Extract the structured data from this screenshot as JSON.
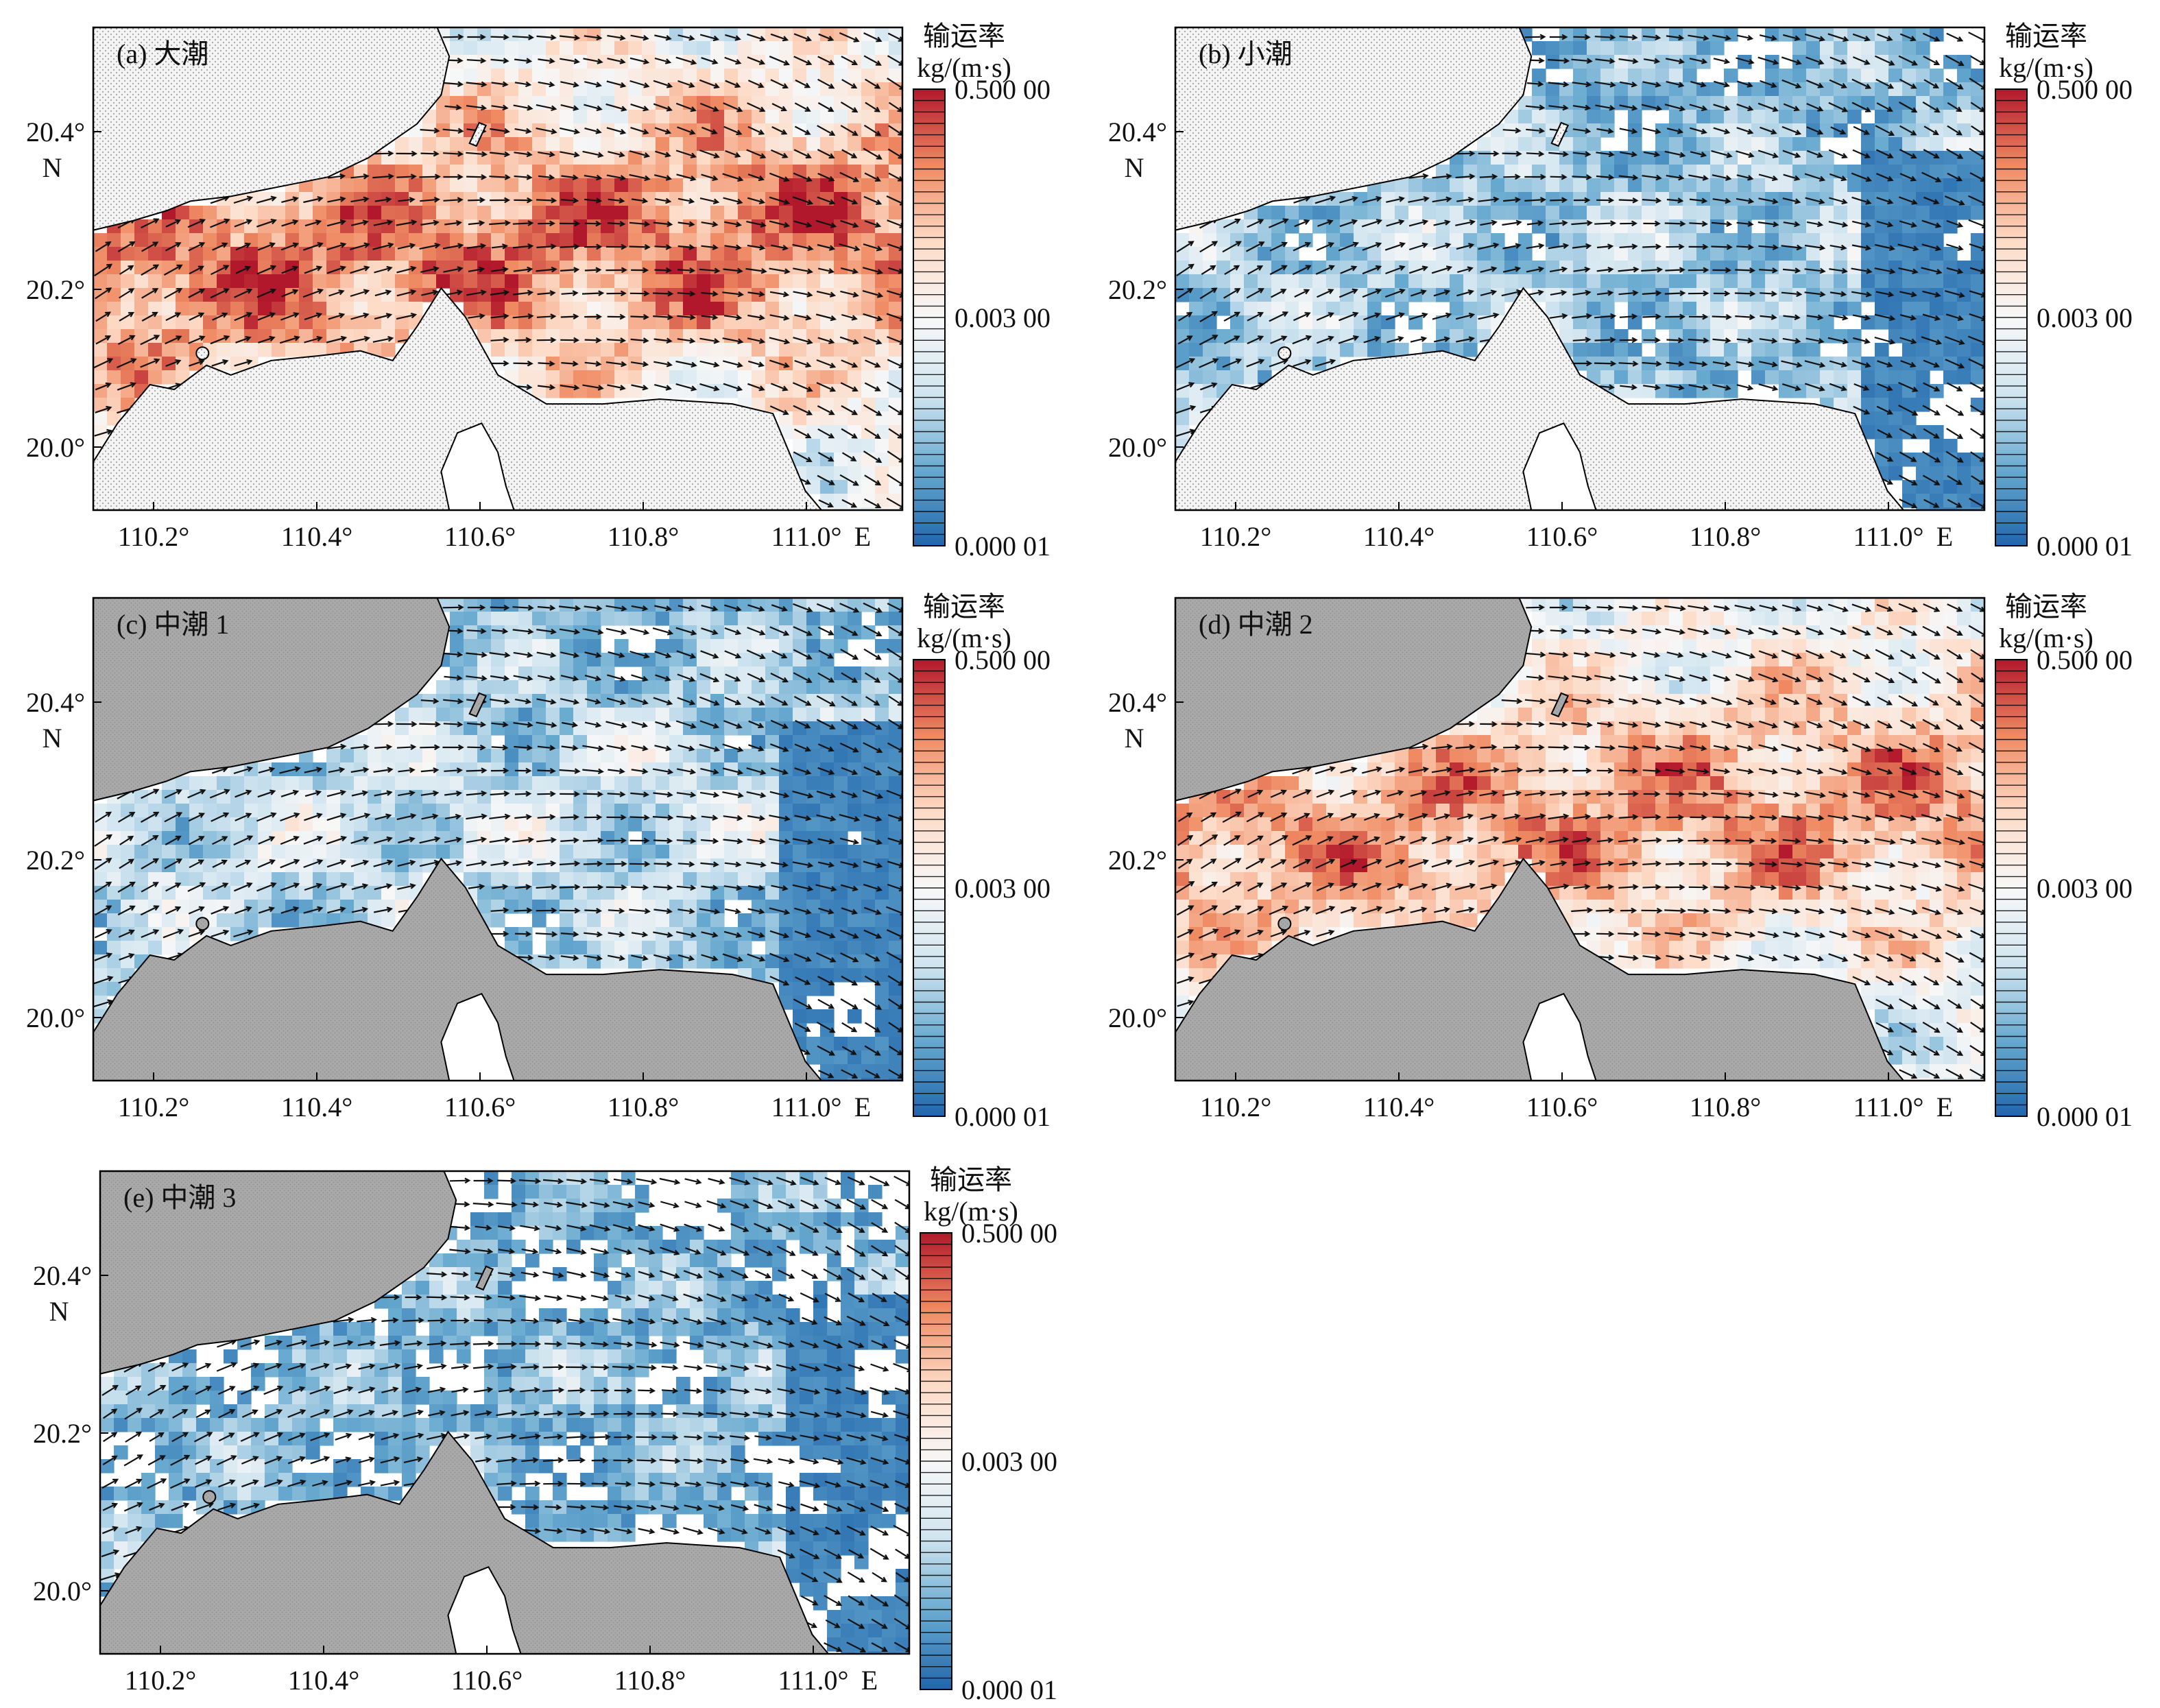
{
  "colorbar": {
    "title_line1": "输运率",
    "title_line2": "kg/(m·s)",
    "labels": [
      "0.500 00",
      "0.003 00",
      "0.000 01"
    ],
    "colors": [
      "#b2182b",
      "#ef8a62",
      "#fddbc7",
      "#f7f7f7",
      "#d1e5f0",
      "#67a9cf",
      "#2166ac"
    ],
    "log_scale": true
  },
  "axes": {
    "x_ticks": [
      "110.2°",
      "110.4°",
      "110.6°",
      "110.8°",
      "111.0°"
    ],
    "x_unit": "E",
    "y_ticks": [
      "20.4°",
      "20.2°",
      "20.0°"
    ],
    "y_unit": "N"
  },
  "panels": [
    {
      "title": "(a) 大潮",
      "intensity": 0.85,
      "land": "dotted"
    },
    {
      "title": "(b) 小潮",
      "intensity": 0.28,
      "land": "dotted"
    },
    {
      "title": "(c) 中潮 1",
      "intensity": 0.35,
      "land": "grey"
    },
    {
      "title": "(d) 中潮 2",
      "intensity": 0.78,
      "land": "grey"
    },
    {
      "title": "(e) 中潮 3",
      "intensity": 0.2,
      "land": "grey"
    }
  ],
  "colors": {
    "land_grey": "#a9a9a9",
    "land_dotted": "#f4f4f4",
    "coast": "#000000",
    "arrows": "#111111"
  }
}
